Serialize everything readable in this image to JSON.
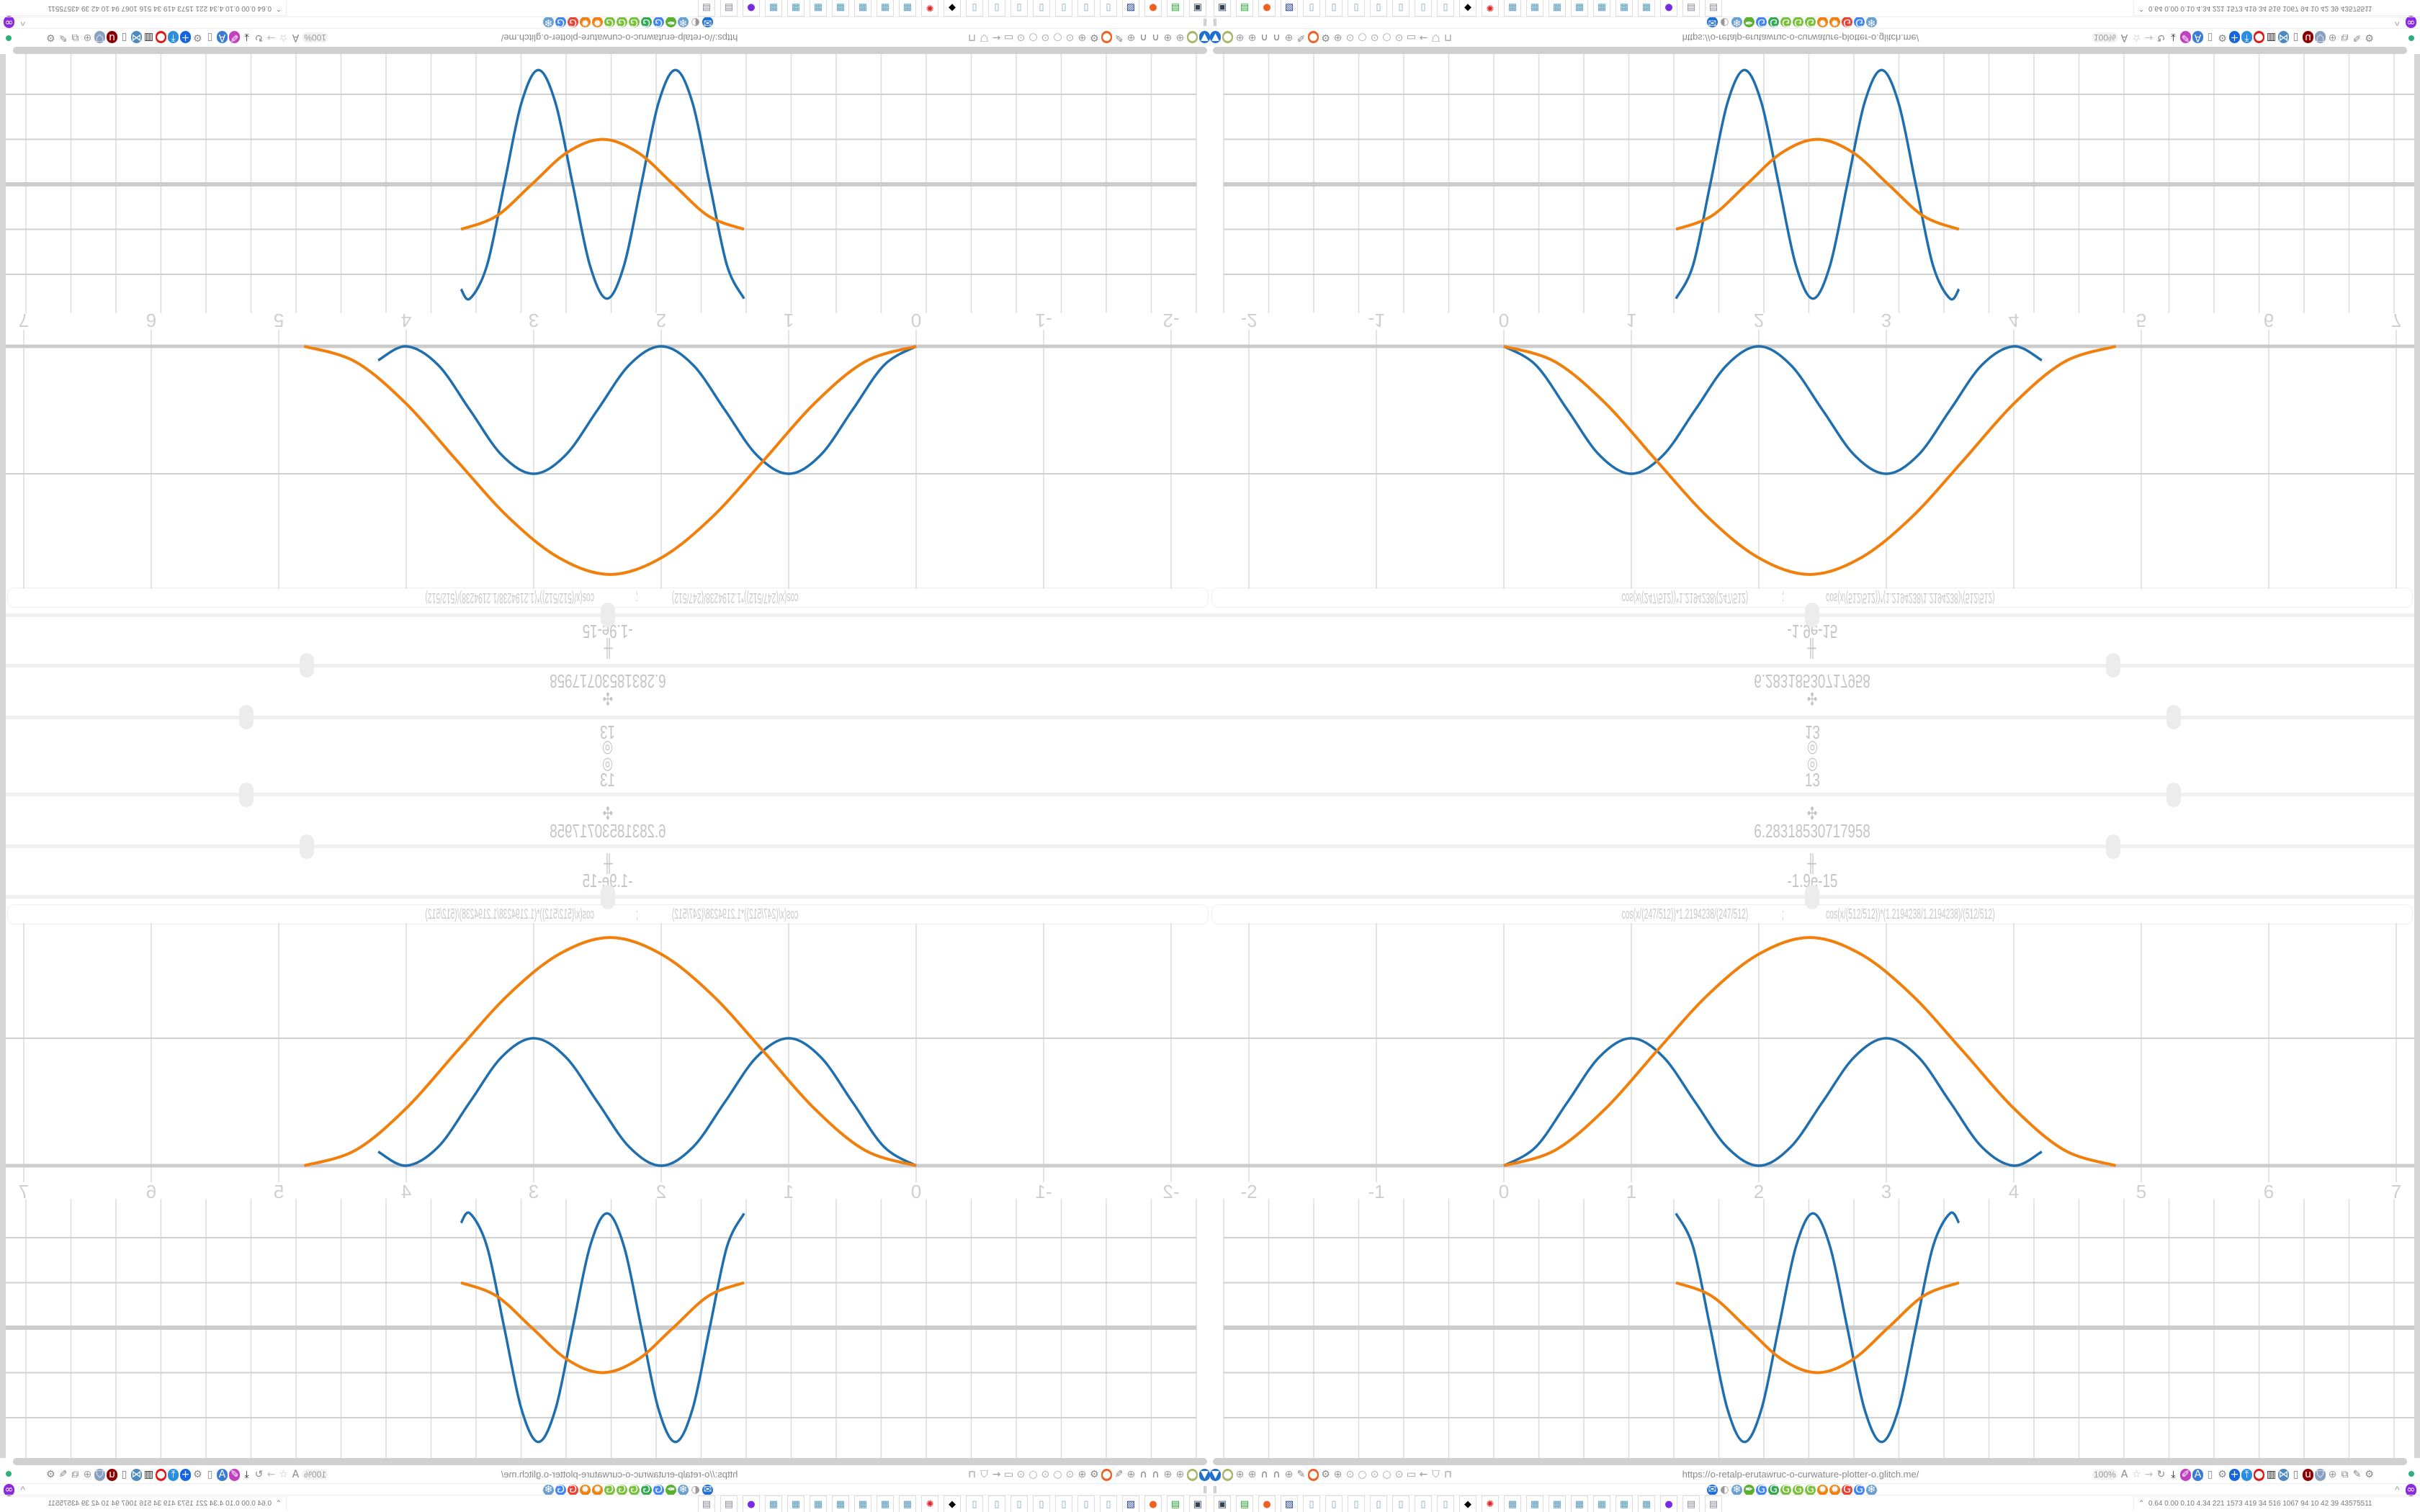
{
  "controls": {
    "top_icon": "◎",
    "rows": [
      {
        "icon": "◎",
        "icon_name": "target-icon",
        "value": "13",
        "slider_level": 0.8
      },
      {
        "icon": "✣",
        "icon_name": "move-icon",
        "value": "6.28318530717958",
        "slider_level": 0.75
      },
      {
        "icon": "╫",
        "icon_name": "range-icon",
        "value": "-1.9e-15",
        "slider_level": 0.5
      }
    ]
  },
  "formula": {
    "left": "cos(x/(247/512))*1.2194238/(247/512)",
    "separator": ";",
    "right": "cos(x/(512/512))*(1.2194238/1.2194238)/(512/512)"
  },
  "browser": {
    "url": "https://o-retalp-erutawruc-o-curwature-plotter-o.glitch.me/",
    "zoom": "100%",
    "nav_left_icons": [
      {
        "name": "download-arrow-icon",
        "glyph": "▼",
        "color": "#1e6fd0"
      },
      {
        "name": "extension-icon",
        "glyph": "●",
        "color": "#a8b86a"
      },
      {
        "name": "globe-icon",
        "glyph": "⊕",
        "color": "#999"
      },
      {
        "name": "globe-icon",
        "glyph": "⊕",
        "color": "#999"
      },
      {
        "name": "headphones-icon",
        "glyph": "∩",
        "color": "#777"
      },
      {
        "name": "headphones-icon",
        "glyph": "∩",
        "color": "#777"
      },
      {
        "name": "globe-icon",
        "glyph": "⊕",
        "color": "#999"
      },
      {
        "name": "wrench-icon",
        "glyph": "✎",
        "color": "#888"
      },
      {
        "name": "firefox-icon",
        "glyph": "●",
        "color": "#f06020"
      },
      {
        "name": "gear-icon",
        "glyph": "⚙",
        "color": "#888"
      },
      {
        "name": "globe-icon",
        "glyph": "⊕",
        "color": "#999"
      },
      {
        "name": "dot-icon",
        "glyph": "⊙",
        "color": "#aaa"
      },
      {
        "name": "circle-icon",
        "glyph": "○",
        "color": "#aaa"
      },
      {
        "name": "dot-icon",
        "glyph": "⊙",
        "color": "#aaa"
      },
      {
        "name": "circle-icon",
        "glyph": "○",
        "color": "#aaa"
      },
      {
        "name": "dot-icon",
        "glyph": "⊙",
        "color": "#aaa"
      },
      {
        "name": "folder-icon",
        "glyph": "▭",
        "color": "#999"
      },
      {
        "name": "back-arrow-icon",
        "glyph": "←",
        "color": "#999"
      },
      {
        "name": "shield-icon",
        "glyph": "⛉",
        "color": "#999"
      },
      {
        "name": "lock-icon",
        "glyph": "⊓",
        "color": "#999"
      }
    ],
    "nav_right_icons": [
      {
        "name": "translate-icon",
        "glyph": "A",
        "color": "#888"
      },
      {
        "name": "star-icon",
        "glyph": "☆",
        "color": "#bbb"
      },
      {
        "name": "forward-arrow-icon",
        "glyph": "→",
        "color": "#bbb"
      },
      {
        "name": "reload-icon",
        "glyph": "↻",
        "color": "#888"
      },
      {
        "name": "download-icon",
        "glyph": "⤓",
        "color": "#222"
      },
      {
        "name": "pen-icon",
        "glyph": "✐",
        "color": "#c040c0"
      },
      {
        "name": "translate-icon",
        "glyph": "A",
        "color": "#3a7bd5"
      },
      {
        "name": "mouse-icon",
        "glyph": "▯",
        "color": "#888"
      },
      {
        "name": "gear-icon",
        "glyph": "⚙",
        "color": "#888"
      },
      {
        "name": "plus-icon",
        "glyph": "+",
        "color": "#1565e0"
      },
      {
        "name": "upload-icon",
        "glyph": "⤒",
        "color": "#2a8de0"
      },
      {
        "name": "record-icon",
        "glyph": "●",
        "color": "#e01818"
      },
      {
        "name": "trash-icon",
        "glyph": "▥",
        "color": "#222"
      },
      {
        "name": "share-icon",
        "glyph": "⋈",
        "color": "#4a8ac0"
      },
      {
        "name": "clipboard-icon",
        "glyph": "▯",
        "color": "#777"
      },
      {
        "name": "ublock-icon",
        "glyph": "u",
        "color": "#8b0000"
      },
      {
        "name": "shield-icon",
        "glyph": "⛉",
        "color": "#8aa0c0"
      },
      {
        "name": "globe-icon",
        "glyph": "⊕",
        "color": "#999"
      },
      {
        "name": "puzzle-icon",
        "glyph": "⧉",
        "color": "#888"
      },
      {
        "name": "wrench-icon",
        "glyph": "✎",
        "color": "#888"
      },
      {
        "name": "gear-icon",
        "glyph": "⚙",
        "color": "#888"
      }
    ],
    "status_dot_color": "#2ab07a"
  },
  "bookmarks": {
    "left_glyph": "‖",
    "icons": [
      {
        "name": "mail-icon",
        "glyph": "✉",
        "color": "#1e6fd0"
      },
      {
        "name": "circle-icon",
        "glyph": "◐",
        "color": "#999"
      },
      {
        "name": "snowflake-icon",
        "glyph": "❄",
        "color": "#6aa0d0"
      },
      {
        "name": "feather-icon",
        "glyph": "✒",
        "color": "#5ab030"
      },
      {
        "name": "google-icon",
        "glyph": "G",
        "color": "#4285f4"
      },
      {
        "name": "google-icon",
        "glyph": "G",
        "color": "#34a853"
      },
      {
        "name": "google-icon",
        "glyph": "G",
        "color": "#7cc040"
      },
      {
        "name": "google-icon",
        "glyph": "G",
        "color": "#7cc040"
      },
      {
        "name": "google-icon",
        "glyph": "G",
        "color": "#7cc040"
      },
      {
        "name": "gear-orange-icon",
        "glyph": "✹",
        "color": "#f08010"
      },
      {
        "name": "gear-orange-icon",
        "glyph": "✹",
        "color": "#f08010"
      },
      {
        "name": "google-icon",
        "glyph": "G",
        "color": "#ea4335"
      },
      {
        "name": "google-icon",
        "glyph": "G",
        "color": "#4285f4"
      },
      {
        "name": "snowflake-icon",
        "glyph": "❄",
        "color": "#6aa0d0"
      }
    ],
    "right_glyph": "^",
    "right_icon": {
      "name": "mask-icon",
      "glyph": "∞",
      "color": "#8a2be2"
    }
  },
  "taskbar": {
    "apps": [
      {
        "name": "monitor-settings-icon",
        "glyph": "▣",
        "color": "#345"
      },
      {
        "name": "terminal-icon",
        "glyph": "▤",
        "color": "#2a2"
      },
      {
        "name": "firefox-icon",
        "glyph": "●",
        "color": "#f06020"
      },
      {
        "name": "floppy-icon",
        "glyph": "▨",
        "color": "#1a3a9a"
      },
      {
        "name": "notepad-icon",
        "glyph": "▯",
        "color": "#7ab"
      },
      {
        "name": "notepad-icon",
        "glyph": "▯",
        "color": "#7ab"
      },
      {
        "name": "notepad-icon",
        "glyph": "▯",
        "color": "#7ab"
      },
      {
        "name": "notepad-icon",
        "glyph": "▯",
        "color": "#7ab"
      },
      {
        "name": "notepad-icon",
        "glyph": "▯",
        "color": "#7ab"
      },
      {
        "name": "notepad-icon",
        "glyph": "▯",
        "color": "#7ab"
      },
      {
        "name": "notepad-icon",
        "glyph": "▯",
        "color": "#7ab"
      },
      {
        "name": "inkscape-icon",
        "glyph": "◆",
        "color": "#000"
      },
      {
        "name": "red-app-icon",
        "glyph": "✺",
        "color": "#d22"
      },
      {
        "name": "calculator-icon",
        "glyph": "▦",
        "color": "#59b"
      },
      {
        "name": "calculator-icon",
        "glyph": "▦",
        "color": "#59b"
      },
      {
        "name": "calculator-icon",
        "glyph": "▦",
        "color": "#59b"
      },
      {
        "name": "calculator-icon",
        "glyph": "▦",
        "color": "#59b"
      },
      {
        "name": "calculator-icon",
        "glyph": "▦",
        "color": "#59b"
      },
      {
        "name": "calculator-icon",
        "glyph": "▦",
        "color": "#59b"
      },
      {
        "name": "calculator-icon",
        "glyph": "▦",
        "color": "#59b"
      },
      {
        "name": "purple-app-icon",
        "glyph": "●",
        "color": "#7a2be2"
      },
      {
        "name": "document-icon",
        "glyph": "▤",
        "color": "#889"
      },
      {
        "name": "document-icon",
        "glyph": "▤",
        "color": "#889"
      }
    ],
    "readout_icon": "⌃",
    "readout": "0.64 0.00 0.10 4.34  221  1573 419   34   516 1067  94    10    42    39   43575511"
  },
  "chart_data": [
    {
      "type": "line",
      "grid": true,
      "x_ticks": [
        "-2",
        "-1",
        "0",
        "1",
        "2",
        "3",
        "4",
        "5",
        "6",
        "7"
      ],
      "xlim": [
        -2,
        7
      ],
      "series": [
        {
          "color": "#1f6fae",
          "points": [
            [
              0,
              0
            ],
            [
              0.25,
              0.146
            ],
            [
              0.5,
              0.5
            ],
            [
              0.75,
              0.854
            ],
            [
              1,
              1
            ],
            [
              1.25,
              0.854
            ],
            [
              1.5,
              0.5
            ],
            [
              1.75,
              0.146
            ],
            [
              2,
              0
            ],
            [
              2.25,
              0.146
            ],
            [
              2.5,
              0.5
            ],
            [
              2.75,
              0.854
            ],
            [
              3,
              1
            ],
            [
              3.25,
              0.854
            ],
            [
              3.5,
              0.5
            ],
            [
              3.75,
              0.146
            ],
            [
              4,
              0
            ],
            [
              4.22,
              0.11
            ]
          ]
        },
        {
          "color": "#f07f0c",
          "points": [
            [
              0,
              0
            ],
            [
              0.4,
              0.12
            ],
            [
              0.8,
              0.45
            ],
            [
              1.2,
              0.9
            ],
            [
              1.6,
              1.34
            ],
            [
              2.0,
              1.66
            ],
            [
              2.4,
              1.79
            ],
            [
              2.8,
              1.66
            ],
            [
              3.2,
              1.34
            ],
            [
              3.6,
              0.9
            ],
            [
              4.0,
              0.45
            ],
            [
              4.4,
              0.12
            ],
            [
              4.8,
              0
            ]
          ]
        }
      ]
    },
    {
      "type": "line",
      "grid": true,
      "series": [
        {
          "color": "#1f6fae",
          "points": [
            [
              1.35,
              2.54
            ],
            [
              1.484,
              1.8
            ],
            [
              1.619,
              0
            ],
            [
              1.753,
              -1.8
            ],
            [
              1.888,
              -2.54
            ],
            [
              2.022,
              -1.8
            ],
            [
              2.156,
              0
            ],
            [
              2.291,
              1.8
            ],
            [
              2.425,
              2.54
            ],
            [
              2.559,
              1.8
            ],
            [
              2.694,
              0
            ],
            [
              2.828,
              -1.8
            ],
            [
              2.963,
              -2.54
            ],
            [
              3.097,
              -1.8
            ],
            [
              3.231,
              0
            ],
            [
              3.366,
              1.8
            ],
            [
              3.5,
              2.54
            ],
            [
              3.57,
              2.33
            ]
          ]
        },
        {
          "color": "#f07f0c",
          "points": [
            [
              1.35,
              1
            ],
            [
              1.628,
              0.707
            ],
            [
              1.905,
              0
            ],
            [
              2.183,
              -0.707
            ],
            [
              2.46,
              -1
            ],
            [
              2.738,
              -0.707
            ],
            [
              3.015,
              0
            ],
            [
              3.293,
              0.707
            ],
            [
              3.57,
              1
            ]
          ]
        }
      ]
    }
  ]
}
